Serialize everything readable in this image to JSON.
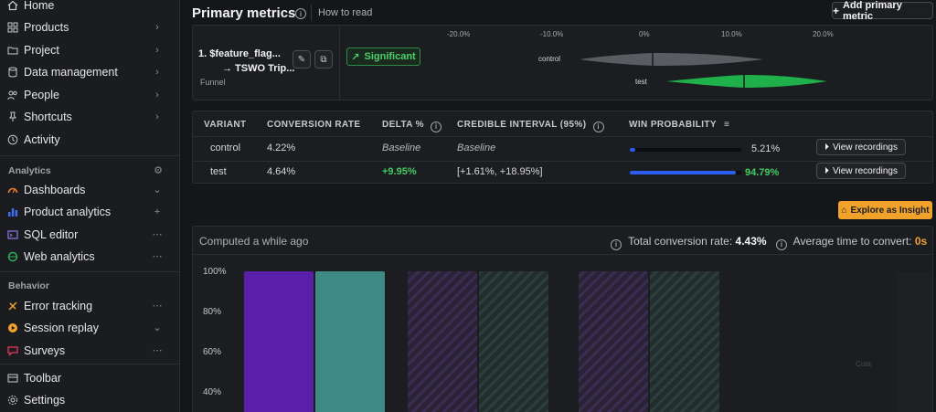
{
  "sidebar": {
    "items": [
      {
        "label": "Home",
        "icon": "home-icon"
      },
      {
        "label": "Products",
        "icon": "grid-icon"
      },
      {
        "label": "Project",
        "icon": "folder-icon"
      },
      {
        "label": "Data management",
        "icon": "database-icon"
      },
      {
        "label": "People",
        "icon": "people-icon"
      },
      {
        "label": "Shortcuts",
        "icon": "pin-icon"
      },
      {
        "label": "Activity",
        "icon": "clock-icon"
      }
    ],
    "analytics_section": "Analytics",
    "analytics_items": [
      {
        "label": "Dashboards",
        "icon": "dashboard-icon"
      },
      {
        "label": "Product analytics",
        "icon": "bar-chart-icon"
      },
      {
        "label": "SQL editor",
        "icon": "sql-icon"
      },
      {
        "label": "Web analytics",
        "icon": "web-icon"
      }
    ],
    "behavior_section": "Behavior",
    "behavior_items": [
      {
        "label": "Error tracking",
        "icon": "error-icon"
      },
      {
        "label": "Session replay",
        "icon": "replay-icon"
      },
      {
        "label": "Surveys",
        "icon": "survey-icon"
      }
    ],
    "footer_items": [
      {
        "label": "Toolbar",
        "icon": "toolbar-icon"
      },
      {
        "label": "Settings",
        "icon": "gear-icon"
      }
    ]
  },
  "header": {
    "title": "Primary metrics",
    "how_to_read": "How to read",
    "add_metric": "Add primary metric"
  },
  "metric": {
    "name_line1": "1.  $feature_flag...",
    "name_line2": "→ TSWO Trip...",
    "type": "Funnel",
    "significance": "Significant",
    "axis_ticks": [
      "-20.0%",
      "-10.0%",
      "0%",
      "10.0%",
      "20.0%"
    ],
    "variants": [
      "control",
      "test"
    ],
    "colors": {
      "control": "#5a5c62",
      "test": "#1fb04c"
    }
  },
  "results_table": {
    "headers": [
      "VARIANT",
      "CONVERSION RATE",
      "DELTA %",
      "CREDIBLE INTERVAL (95%)",
      "WIN PROBABILITY"
    ],
    "rows": [
      {
        "variant": "control",
        "conversion_rate": "4.22%",
        "delta": "Baseline",
        "interval": "Baseline",
        "win_probability": "5.21%",
        "win_fraction": 0.0521,
        "action": "View recordings"
      },
      {
        "variant": "test",
        "conversion_rate": "4.64%",
        "delta": "+9.95%",
        "interval": "[+1.61%, +18.95%]",
        "win_probability": "94.79%",
        "win_fraction": 0.9479,
        "action": "View recordings"
      }
    ]
  },
  "explore_button": "Explore as Insight",
  "chart_panel": {
    "computed": "Computed a while ago",
    "total_conversion_label": "Total conversion rate:",
    "total_conversion_value": "4.43%",
    "avg_time_label": "Average time to convert:",
    "avg_time_value": "0s",
    "ghost_label": "Cota"
  },
  "chart_data": {
    "type": "bar",
    "yticks": [
      "100%",
      "80%",
      "60%",
      "40%"
    ],
    "ylim": [
      30,
      100
    ],
    "steps": [
      {
        "control": 100,
        "test": 100,
        "ghost": false
      },
      {
        "control": 100,
        "test": 100,
        "ghost": true
      },
      {
        "control": 100,
        "test": 100,
        "ghost": true
      }
    ],
    "colors": {
      "control": "#5b1ea8",
      "test": "#3f8a84"
    }
  }
}
